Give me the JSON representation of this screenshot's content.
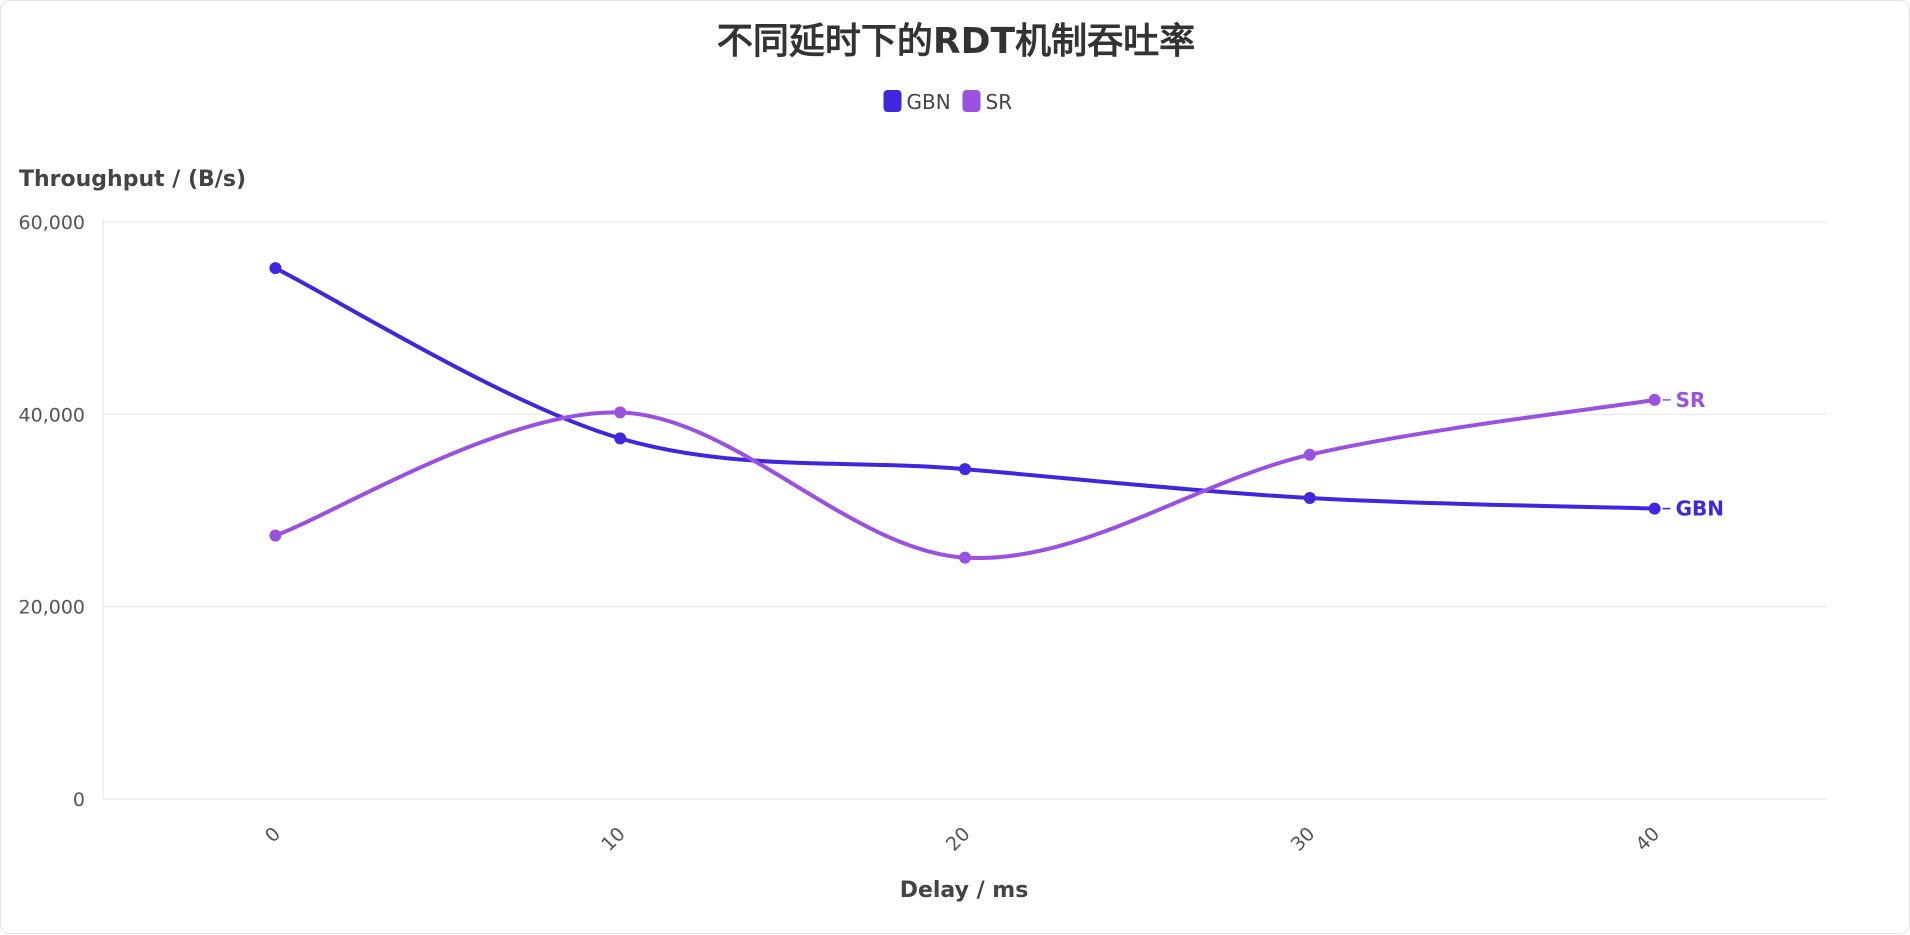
{
  "chart_data": {
    "type": "line",
    "title": "不同延时下的RDT机制吞吐率",
    "xlabel": "Delay / ms",
    "ylabel": "Throughput / (B/s)",
    "x": [
      0,
      10,
      20,
      30,
      40
    ],
    "x_tick_labels": [
      "0",
      "10",
      "20",
      "30",
      "40"
    ],
    "xlim": [
      -5,
      45
    ],
    "ylim": [
      0,
      60000
    ],
    "y_ticks": [
      0,
      20000,
      40000,
      60000
    ],
    "y_tick_labels": [
      "0",
      "20,000",
      "40,000",
      "60,000"
    ],
    "grid": "horizontal",
    "legend_position": "top-center",
    "series": [
      {
        "name": "GBN",
        "color": "#3f27de",
        "values": [
          55200,
          37500,
          34300,
          31300,
          30200
        ]
      },
      {
        "name": "SR",
        "color": "#9b51e0",
        "values": [
          27400,
          40200,
          25100,
          35800,
          41500
        ]
      }
    ]
  }
}
